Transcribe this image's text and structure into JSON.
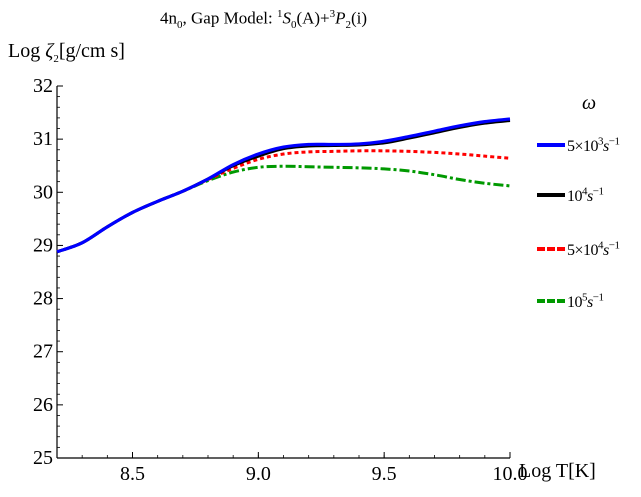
{
  "chart_data": {
    "type": "line",
    "title_prefix": "4n",
    "title_prefix_sub": "0",
    "title_main": ", Gap Model: ",
    "title_s_sup": "1",
    "title_s": "S",
    "title_s_sub": "0",
    "title_mid": "(A)+",
    "title_p_sup": "3",
    "title_p": "P",
    "title_p_sub": "2",
    "title_end": "(i)",
    "ylabel_pre": "Log ",
    "ylabel_sym": "ζ",
    "ylabel_sub": "2",
    "ylabel_unit": "[g/cm s]",
    "xlabel": "Log T[K]",
    "legend_title": "ω",
    "xlim": [
      8.2,
      10.0
    ],
    "ylim": [
      25,
      32
    ],
    "xticks": [
      8.5,
      9.0,
      9.5,
      10.0
    ],
    "xtick_labels": [
      "8.5",
      "9.0",
      "9.5",
      "10.0"
    ],
    "yticks": [
      25,
      26,
      27,
      28,
      29,
      30,
      31,
      32
    ],
    "ytick_labels": [
      "25",
      "26",
      "27",
      "28",
      "29",
      "30",
      "31",
      "32"
    ],
    "grid": false,
    "legend_position": "right",
    "x": [
      8.2,
      8.3,
      8.4,
      8.5,
      8.6,
      8.7,
      8.8,
      8.9,
      9.0,
      9.1,
      9.2,
      9.3,
      9.4,
      9.5,
      9.6,
      9.7,
      9.8,
      9.9,
      10.0
    ],
    "series": [
      {
        "label_base": "5×10",
        "label_exp": "3",
        "label_unit": "s",
        "label_unit_exp": "−1",
        "color": "#0000ff",
        "dash": "",
        "values": [
          28.88,
          29.05,
          29.35,
          29.62,
          29.83,
          30.02,
          30.25,
          30.52,
          30.72,
          30.85,
          30.9,
          30.9,
          30.91,
          30.96,
          31.05,
          31.15,
          31.25,
          31.33,
          31.38
        ]
      },
      {
        "label_base": "10",
        "label_exp": "4",
        "label_unit": "s",
        "label_unit_exp": "−1",
        "color": "#000000",
        "dash": "",
        "values": [
          28.88,
          29.05,
          29.35,
          29.62,
          29.83,
          30.02,
          30.25,
          30.5,
          30.68,
          30.82,
          30.87,
          30.88,
          30.89,
          30.93,
          31.02,
          31.12,
          31.22,
          31.3,
          31.35
        ]
      },
      {
        "label_base": "5×10",
        "label_exp": "4",
        "label_unit": "s",
        "label_unit_exp": "−1",
        "color": "#ff0000",
        "dash": "4,3",
        "values": [
          28.88,
          29.05,
          29.35,
          29.62,
          29.83,
          30.02,
          30.24,
          30.45,
          30.62,
          30.72,
          30.76,
          30.77,
          30.78,
          30.78,
          30.77,
          30.75,
          30.72,
          30.68,
          30.64
        ]
      },
      {
        "label_base": "10",
        "label_exp": "5",
        "label_unit": "s",
        "label_unit_exp": "−1",
        "color": "#009900",
        "dash": "10,3,3,3",
        "values": [
          28.88,
          29.05,
          29.35,
          29.62,
          29.83,
          30.02,
          30.22,
          30.38,
          30.47,
          30.49,
          30.48,
          30.47,
          30.46,
          30.44,
          30.4,
          30.33,
          30.24,
          30.17,
          30.12
        ]
      }
    ]
  }
}
